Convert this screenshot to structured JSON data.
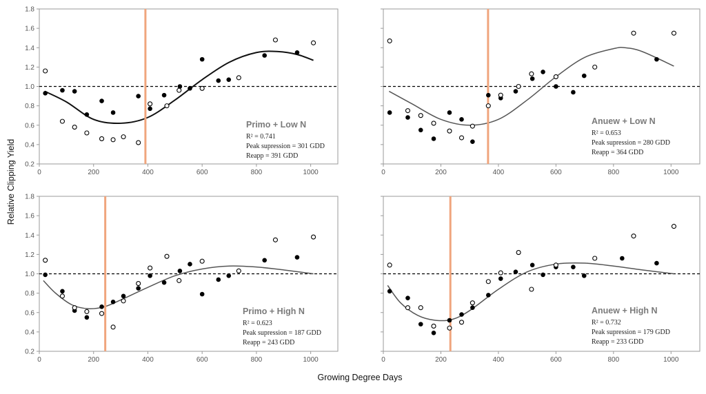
{
  "figure": {
    "ylabel": "Relative Clipping Yield",
    "xlabel": "Growing Degree Days"
  },
  "chart_data": [
    {
      "type": "scatter",
      "panel": "top-left",
      "title": "Primo + Low N",
      "stats": [
        "R² = 0.741",
        "Peak supression = 301 GDD",
        "Reapp = 391 GDD"
      ],
      "xlim": [
        0,
        1100
      ],
      "ylim": [
        0.2,
        1.8
      ],
      "x_ticks": [
        0,
        200,
        400,
        600,
        800,
        1000
      ],
      "y_ticks": [
        0.2,
        0.4,
        0.6,
        0.8,
        1.0,
        1.2,
        1.4,
        1.6,
        1.8
      ],
      "show_y_tick_labels": true,
      "reference_line_y": 1.0,
      "vertical_line_x": 391,
      "fit": {
        "color": "#111111",
        "width": 2,
        "points": [
          [
            20,
            0.95
          ],
          [
            100,
            0.84
          ],
          [
            200,
            0.66
          ],
          [
            300,
            0.62
          ],
          [
            400,
            0.68
          ],
          [
            500,
            0.86
          ],
          [
            600,
            1.07
          ],
          [
            700,
            1.25
          ],
          [
            800,
            1.35
          ],
          [
            880,
            1.36
          ],
          [
            950,
            1.33
          ],
          [
            1010,
            1.27
          ]
        ]
      },
      "series": [
        {
          "marker": "filled",
          "points": [
            [
              22,
              0.93
            ],
            [
              85,
              0.96
            ],
            [
              130,
              0.95
            ],
            [
              175,
              0.71
            ],
            [
              230,
              0.85
            ],
            [
              272,
              0.73
            ],
            [
              365,
              0.9
            ],
            [
              408,
              0.77
            ],
            [
              460,
              0.91
            ],
            [
              518,
              1.0
            ],
            [
              555,
              0.98
            ],
            [
              600,
              1.28
            ],
            [
              660,
              1.06
            ],
            [
              698,
              1.07
            ],
            [
              830,
              1.32
            ],
            [
              950,
              1.35
            ]
          ]
        },
        {
          "marker": "open",
          "points": [
            [
              22,
              1.16
            ],
            [
              85,
              0.64
            ],
            [
              130,
              0.58
            ],
            [
              175,
              0.52
            ],
            [
              230,
              0.46
            ],
            [
              272,
              0.45
            ],
            [
              310,
              0.48
            ],
            [
              365,
              0.42
            ],
            [
              408,
              0.82
            ],
            [
              470,
              0.8
            ],
            [
              515,
              0.96
            ],
            [
              600,
              0.98
            ],
            [
              735,
              1.09
            ],
            [
              870,
              1.48
            ],
            [
              1010,
              1.45
            ]
          ]
        }
      ]
    },
    {
      "type": "scatter",
      "panel": "top-right",
      "title": "Anuew + Low N",
      "stats": [
        "R² = 0.653",
        "Peak supression = 280 GDD",
        "Reapp = 364 GDD"
      ],
      "xlim": [
        0,
        1100
      ],
      "ylim": [
        0.2,
        1.8
      ],
      "x_ticks": [
        0,
        200,
        400,
        600,
        800,
        1000
      ],
      "y_ticks": [
        0.2,
        0.4,
        0.6,
        0.8,
        1.0,
        1.2,
        1.4,
        1.6,
        1.8
      ],
      "show_y_tick_labels": false,
      "reference_line_y": 1.0,
      "vertical_line_x": 364,
      "fit": {
        "color": "#555555",
        "width": 1.5,
        "points": [
          [
            20,
            0.95
          ],
          [
            100,
            0.82
          ],
          [
            200,
            0.66
          ],
          [
            300,
            0.6
          ],
          [
            400,
            0.66
          ],
          [
            500,
            0.86
          ],
          [
            600,
            1.1
          ],
          [
            700,
            1.3
          ],
          [
            800,
            1.39
          ],
          [
            840,
            1.4
          ],
          [
            900,
            1.36
          ],
          [
            1010,
            1.21
          ]
        ]
      },
      "series": [
        {
          "marker": "filled",
          "points": [
            [
              22,
              0.73
            ],
            [
              85,
              0.68
            ],
            [
              130,
              0.55
            ],
            [
              175,
              0.46
            ],
            [
              230,
              0.73
            ],
            [
              272,
              0.66
            ],
            [
              310,
              0.43
            ],
            [
              365,
              0.91
            ],
            [
              408,
              0.88
            ],
            [
              460,
              0.95
            ],
            [
              518,
              1.08
            ],
            [
              555,
              1.15
            ],
            [
              600,
              1.0
            ],
            [
              660,
              0.94
            ],
            [
              698,
              1.11
            ],
            [
              950,
              1.28
            ]
          ]
        },
        {
          "marker": "open",
          "points": [
            [
              22,
              1.47
            ],
            [
              85,
              0.75
            ],
            [
              130,
              0.7
            ],
            [
              175,
              0.62
            ],
            [
              230,
              0.54
            ],
            [
              272,
              0.47
            ],
            [
              310,
              0.59
            ],
            [
              365,
              0.8
            ],
            [
              408,
              0.91
            ],
            [
              470,
              1.0
            ],
            [
              515,
              1.13
            ],
            [
              600,
              1.1
            ],
            [
              735,
              1.2
            ],
            [
              870,
              1.55
            ],
            [
              1010,
              1.55
            ]
          ]
        }
      ]
    },
    {
      "type": "scatter",
      "panel": "bottom-left",
      "title": "Primo + High N",
      "stats": [
        "R² = 0.623",
        "Peak supression = 187 GDD",
        "Reapp = 243 GDD"
      ],
      "xlim": [
        0,
        1100
      ],
      "ylim": [
        0.2,
        1.8
      ],
      "x_ticks": [
        0,
        200,
        400,
        600,
        800,
        1000
      ],
      "y_ticks": [
        0.2,
        0.4,
        0.6,
        0.8,
        1.0,
        1.2,
        1.4,
        1.6,
        1.8
      ],
      "show_y_tick_labels": true,
      "reference_line_y": 1.0,
      "vertical_line_x": 243,
      "fit": {
        "color": "#555555",
        "width": 1.5,
        "points": [
          [
            15,
            0.93
          ],
          [
            60,
            0.8
          ],
          [
            120,
            0.68
          ],
          [
            180,
            0.64
          ],
          [
            240,
            0.66
          ],
          [
            300,
            0.73
          ],
          [
            400,
            0.86
          ],
          [
            500,
            0.98
          ],
          [
            600,
            1.05
          ],
          [
            700,
            1.08
          ],
          [
            800,
            1.07
          ],
          [
            900,
            1.04
          ],
          [
            1010,
            1.0
          ]
        ]
      },
      "series": [
        {
          "marker": "filled",
          "points": [
            [
              22,
              0.99
            ],
            [
              85,
              0.82
            ],
            [
              130,
              0.62
            ],
            [
              175,
              0.55
            ],
            [
              230,
              0.66
            ],
            [
              272,
              0.71
            ],
            [
              310,
              0.77
            ],
            [
              365,
              0.85
            ],
            [
              408,
              0.98
            ],
            [
              460,
              0.91
            ],
            [
              518,
              1.03
            ],
            [
              555,
              1.1
            ],
            [
              600,
              0.79
            ],
            [
              660,
              0.94
            ],
            [
              698,
              0.98
            ],
            [
              830,
              1.14
            ],
            [
              950,
              1.17
            ]
          ]
        },
        {
          "marker": "open",
          "points": [
            [
              22,
              1.14
            ],
            [
              85,
              0.77
            ],
            [
              130,
              0.65
            ],
            [
              175,
              0.61
            ],
            [
              230,
              0.59
            ],
            [
              272,
              0.45
            ],
            [
              310,
              0.72
            ],
            [
              365,
              0.9
            ],
            [
              408,
              1.06
            ],
            [
              470,
              1.18
            ],
            [
              515,
              0.93
            ],
            [
              600,
              1.13
            ],
            [
              735,
              1.03
            ],
            [
              870,
              1.35
            ],
            [
              1010,
              1.38
            ]
          ]
        }
      ]
    },
    {
      "type": "scatter",
      "panel": "bottom-right",
      "title": "Anuew + High N",
      "stats": [
        "R² = 0.732",
        "Peak supression = 179 GDD",
        "Reapp = 233 GDD"
      ],
      "xlim": [
        0,
        1100
      ],
      "ylim": [
        0.2,
        1.8
      ],
      "x_ticks": [
        0,
        200,
        400,
        600,
        800,
        1000
      ],
      "y_ticks": [
        0.2,
        0.4,
        0.6,
        0.8,
        1.0,
        1.2,
        1.4,
        1.6,
        1.8
      ],
      "show_y_tick_labels": false,
      "reference_line_y": 1.0,
      "vertical_line_x": 233,
      "fit": {
        "color": "#555555",
        "width": 1.5,
        "points": [
          [
            15,
            0.88
          ],
          [
            60,
            0.7
          ],
          [
            120,
            0.57
          ],
          [
            180,
            0.52
          ],
          [
            240,
            0.53
          ],
          [
            300,
            0.62
          ],
          [
            400,
            0.84
          ],
          [
            500,
            1.02
          ],
          [
            600,
            1.1
          ],
          [
            700,
            1.11
          ],
          [
            800,
            1.08
          ],
          [
            900,
            1.04
          ],
          [
            1010,
            1.0
          ]
        ]
      },
      "series": [
        {
          "marker": "filled",
          "points": [
            [
              22,
              0.82
            ],
            [
              85,
              0.75
            ],
            [
              130,
              0.48
            ],
            [
              175,
              0.39
            ],
            [
              230,
              0.52
            ],
            [
              272,
              0.58
            ],
            [
              310,
              0.65
            ],
            [
              365,
              0.78
            ],
            [
              408,
              0.95
            ],
            [
              460,
              1.02
            ],
            [
              518,
              1.09
            ],
            [
              555,
              0.99
            ],
            [
              600,
              1.07
            ],
            [
              660,
              1.07
            ],
            [
              698,
              0.98
            ],
            [
              830,
              1.16
            ],
            [
              950,
              1.11
            ]
          ]
        },
        {
          "marker": "open",
          "points": [
            [
              22,
              1.09
            ],
            [
              85,
              0.65
            ],
            [
              130,
              0.65
            ],
            [
              175,
              0.46
            ],
            [
              230,
              0.44
            ],
            [
              272,
              0.5
            ],
            [
              310,
              0.7
            ],
            [
              365,
              0.92
            ],
            [
              408,
              1.01
            ],
            [
              470,
              1.22
            ],
            [
              515,
              0.84
            ],
            [
              600,
              1.09
            ],
            [
              735,
              1.16
            ],
            [
              870,
              1.39
            ],
            [
              1010,
              1.49
            ]
          ]
        }
      ]
    }
  ],
  "colors": {
    "vertical_line": "#f0a57d",
    "filled_marker": "#000000",
    "open_marker_stroke": "#000000",
    "reference_line": "#000000"
  }
}
